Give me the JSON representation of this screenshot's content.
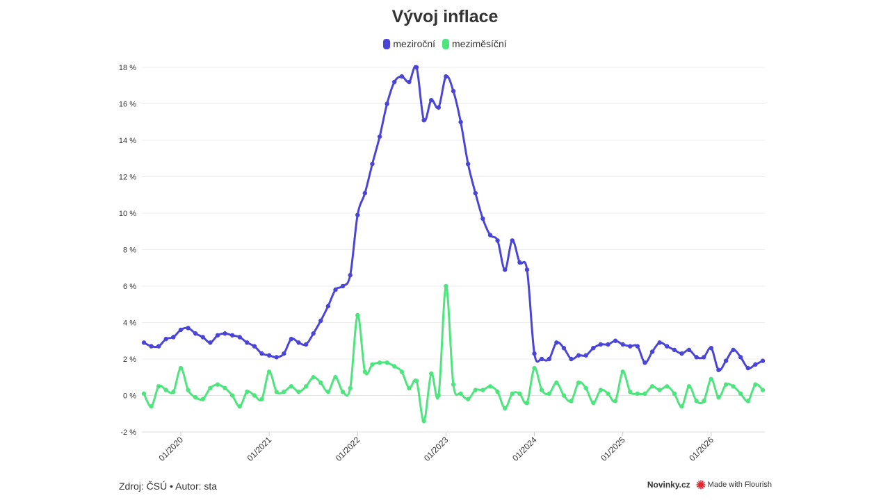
{
  "header": {
    "title": "Vývoj inflace"
  },
  "legend": [
    {
      "label": "meziroční",
      "color": "#4a45d6"
    },
    {
      "label": "meziměsíční",
      "color": "#4ee57e"
    }
  ],
  "footer": {
    "source": "Zdroj: ČSÚ • Autor: sta",
    "brand": "Novinky.cz",
    "flourish": "Made with Flourish",
    "flourish_icon": "flourish-burst-icon",
    "flourish_color": "#e0252e"
  },
  "chart_data": {
    "type": "line",
    "title": "Vývoj inflace",
    "xlabel": "",
    "ylabel": "",
    "ylim": [
      -2,
      18
    ],
    "yticks": [
      -2,
      0,
      2,
      4,
      6,
      8,
      10,
      12,
      14,
      16,
      18
    ],
    "ytick_labels": [
      "-2 %",
      "0 %",
      "2 %",
      "4 %",
      "6 %",
      "8 %",
      "10 %",
      "12 %",
      "14 %",
      "16 %",
      "18 %"
    ],
    "x_start": "2019-08",
    "x_end": "2026-08",
    "xtick_labels": [
      "01/2020",
      "01/2021",
      "01/2022",
      "01/2023",
      "01/2024",
      "01/2025",
      "01/2026"
    ],
    "xtick_months": [
      "2020-01",
      "2021-01",
      "2022-01",
      "2023-01",
      "2024-01",
      "2025-01",
      "2026-01"
    ],
    "grid": true,
    "legend_position": "top-center",
    "series": [
      {
        "name": "meziroční",
        "color": "#4a45d6",
        "values": [
          2.9,
          2.7,
          2.7,
          3.1,
          3.2,
          3.6,
          3.7,
          3.4,
          3.2,
          2.9,
          3.3,
          3.4,
          3.3,
          3.2,
          2.9,
          2.7,
          2.3,
          2.2,
          2.1,
          2.3,
          3.1,
          2.9,
          2.8,
          3.4,
          4.1,
          4.9,
          5.8,
          6.0,
          6.6,
          9.9,
          11.1,
          12.7,
          14.2,
          16.0,
          17.2,
          17.5,
          17.2,
          18.0,
          15.1,
          16.2,
          15.8,
          17.5,
          16.7,
          15.0,
          12.7,
          11.1,
          9.7,
          8.8,
          8.5,
          6.9,
          8.5,
          7.3,
          6.9,
          2.3,
          2.0,
          2.0,
          2.9,
          2.6,
          2.0,
          2.2,
          2.2,
          2.6,
          2.8,
          2.8,
          3.0,
          2.8,
          2.7,
          2.7,
          1.8,
          2.4,
          2.9,
          2.7,
          2.5,
          2.3,
          2.5,
          2.1,
          2.1,
          2.6,
          1.4,
          1.9,
          2.5,
          2.1,
          1.5,
          1.7,
          1.9
        ]
      },
      {
        "name": "meziměsíční",
        "color": "#4ee57e",
        "values": [
          0.1,
          -0.6,
          0.5,
          0.3,
          0.2,
          1.5,
          0.3,
          -0.1,
          -0.2,
          0.4,
          0.6,
          0.4,
          0.0,
          -0.6,
          0.2,
          0.0,
          -0.2,
          1.3,
          0.2,
          0.2,
          0.5,
          0.2,
          0.5,
          1.0,
          0.7,
          0.2,
          1.0,
          0.2,
          0.4,
          4.4,
          1.3,
          1.7,
          1.8,
          1.8,
          1.6,
          1.3,
          0.4,
          0.8,
          -1.4,
          1.2,
          0.0,
          6.0,
          0.6,
          0.1,
          -0.2,
          0.3,
          0.3,
          0.5,
          0.2,
          -0.7,
          0.1,
          0.1,
          -0.4,
          1.5,
          0.3,
          0.1,
          0.7,
          0.0,
          -0.3,
          0.7,
          0.4,
          -0.4,
          0.3,
          0.1,
          -0.3,
          1.3,
          0.2,
          0.1,
          0.1,
          0.5,
          0.3,
          0.5,
          0.1,
          -0.6,
          0.5,
          -0.3,
          -0.3,
          0.9,
          -0.1,
          0.6,
          0.5,
          0.1,
          -0.3,
          0.6,
          0.3
        ]
      }
    ]
  }
}
